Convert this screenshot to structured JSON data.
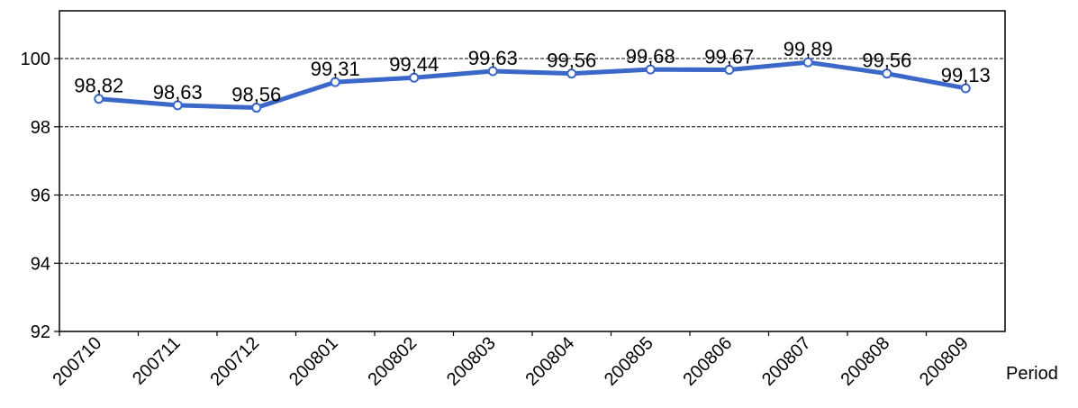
{
  "chart_data": {
    "type": "line",
    "title": "",
    "xlabel": "Period",
    "ylabel": "",
    "categories": [
      "200710",
      "200711",
      "200712",
      "200801",
      "200802",
      "200803",
      "200804",
      "200805",
      "200806",
      "200807",
      "200808",
      "200809"
    ],
    "series": [
      {
        "values": [
          98.82,
          98.63,
          98.56,
          99.31,
          99.44,
          99.63,
          99.56,
          99.68,
          99.67,
          99.89,
          99.56,
          99.13
        ],
        "labels": [
          "98,82",
          "98,63",
          "98,56",
          "99,31",
          "99,44",
          "99,63",
          "99,56",
          "99,68",
          "99,67",
          "99,89",
          "99,56",
          "99,13"
        ],
        "color": "#3a67c8"
      }
    ],
    "ylim": [
      92,
      101.4
    ],
    "yticks": [
      92,
      94,
      96,
      98,
      100
    ],
    "grid": "dashed horizontal",
    "legend": "none"
  }
}
